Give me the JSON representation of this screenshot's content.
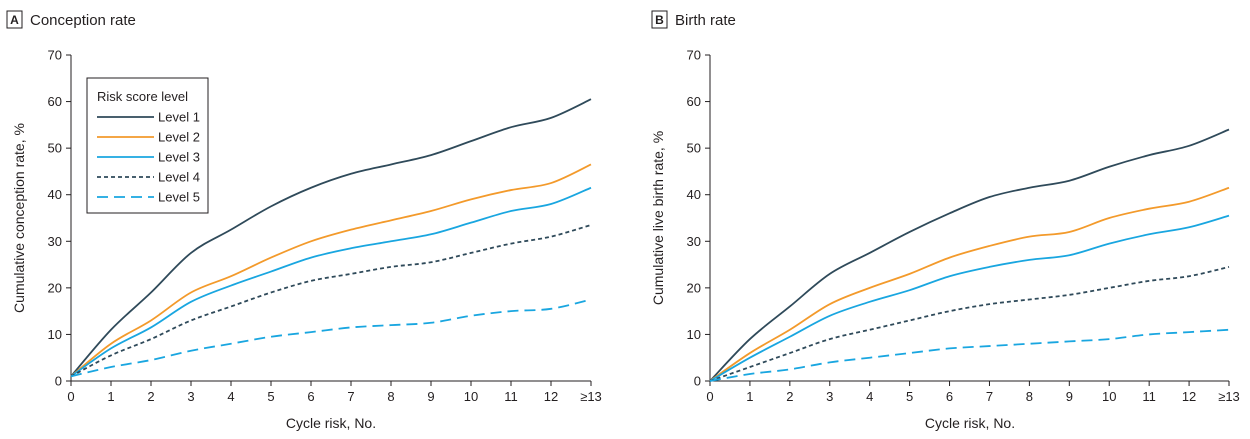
{
  "chart_data": [
    {
      "type": "line",
      "panel_letter": "A",
      "title": "Conception rate",
      "xlabel": "Cycle risk, No.",
      "ylabel": "Cumulative conception rate, %",
      "x": [
        0,
        1,
        2,
        3,
        4,
        5,
        6,
        7,
        8,
        9,
        10,
        11,
        12,
        13
      ],
      "x_tick_labels": [
        "0",
        "1",
        "2",
        "3",
        "4",
        "5",
        "6",
        "7",
        "8",
        "9",
        "10",
        "11",
        "12",
        "≥13"
      ],
      "ylim": [
        0,
        70
      ],
      "y_ticks": [
        0,
        10,
        20,
        30,
        40,
        50,
        60,
        70
      ],
      "grid": false,
      "legend": {
        "title": "Risk score level",
        "placement": "top-left"
      },
      "series": [
        {
          "name": "Level 1",
          "color": "#2f4a5a",
          "dash": "solid",
          "values": [
            1,
            11,
            19,
            27.5,
            32.5,
            37.5,
            41.5,
            44.5,
            46.5,
            48.5,
            51.5,
            54.5,
            56.5,
            60.5
          ]
        },
        {
          "name": "Level 2",
          "color": "#f39a2b",
          "dash": "solid",
          "values": [
            1,
            8,
            13,
            19,
            22.5,
            26.5,
            30,
            32.5,
            34.5,
            36.5,
            39,
            41,
            42.5,
            46.5
          ]
        },
        {
          "name": "Level 3",
          "color": "#19a6e0",
          "dash": "solid",
          "values": [
            1,
            7,
            11.5,
            17,
            20.5,
            23.5,
            26.5,
            28.5,
            30,
            31.5,
            34,
            36.5,
            38,
            41.5
          ]
        },
        {
          "name": "Level 4",
          "color": "#2f4a5a",
          "dash": "short",
          "values": [
            1,
            5.5,
            9,
            13,
            16,
            19,
            21.5,
            23,
            24.5,
            25.5,
            27.5,
            29.5,
            31,
            33.5
          ]
        },
        {
          "name": "Level 5",
          "color": "#19a6e0",
          "dash": "long",
          "values": [
            1,
            3,
            4.5,
            6.5,
            8,
            9.5,
            10.5,
            11.5,
            12,
            12.5,
            14,
            15,
            15.5,
            17.5
          ]
        }
      ]
    },
    {
      "type": "line",
      "panel_letter": "B",
      "title": "Birth rate",
      "xlabel": "Cycle risk, No.",
      "ylabel": "Cumulative live birth rate, %",
      "x": [
        0,
        1,
        2,
        3,
        4,
        5,
        6,
        7,
        8,
        9,
        10,
        11,
        12,
        13
      ],
      "x_tick_labels": [
        "0",
        "1",
        "2",
        "3",
        "4",
        "5",
        "6",
        "7",
        "8",
        "9",
        "10",
        "11",
        "12",
        "≥13"
      ],
      "ylim": [
        0,
        70
      ],
      "y_ticks": [
        0,
        10,
        20,
        30,
        40,
        50,
        60,
        70
      ],
      "grid": false,
      "series": [
        {
          "name": "Level 1",
          "color": "#2f4a5a",
          "dash": "solid",
          "values": [
            0,
            9,
            16,
            23,
            27.5,
            32,
            36,
            39.5,
            41.5,
            43,
            46,
            48.5,
            50.5,
            54
          ]
        },
        {
          "name": "Level 2",
          "color": "#f39a2b",
          "dash": "solid",
          "values": [
            0,
            6,
            11,
            16.5,
            20,
            23,
            26.5,
            29,
            31,
            32,
            35,
            37,
            38.5,
            41.5
          ]
        },
        {
          "name": "Level 3",
          "color": "#19a6e0",
          "dash": "solid",
          "values": [
            0,
            5,
            9.5,
            14,
            17,
            19.5,
            22.5,
            24.5,
            26,
            27,
            29.5,
            31.5,
            33,
            35.5
          ]
        },
        {
          "name": "Level 4",
          "color": "#2f4a5a",
          "dash": "short",
          "values": [
            0,
            3,
            6,
            9,
            11,
            13,
            15,
            16.5,
            17.5,
            18.5,
            20,
            21.5,
            22.5,
            24.5
          ]
        },
        {
          "name": "Level 5",
          "color": "#19a6e0",
          "dash": "long",
          "values": [
            0,
            1.5,
            2.5,
            4,
            5,
            6,
            7,
            7.5,
            8,
            8.5,
            9,
            10,
            10.5,
            11
          ]
        }
      ]
    }
  ]
}
